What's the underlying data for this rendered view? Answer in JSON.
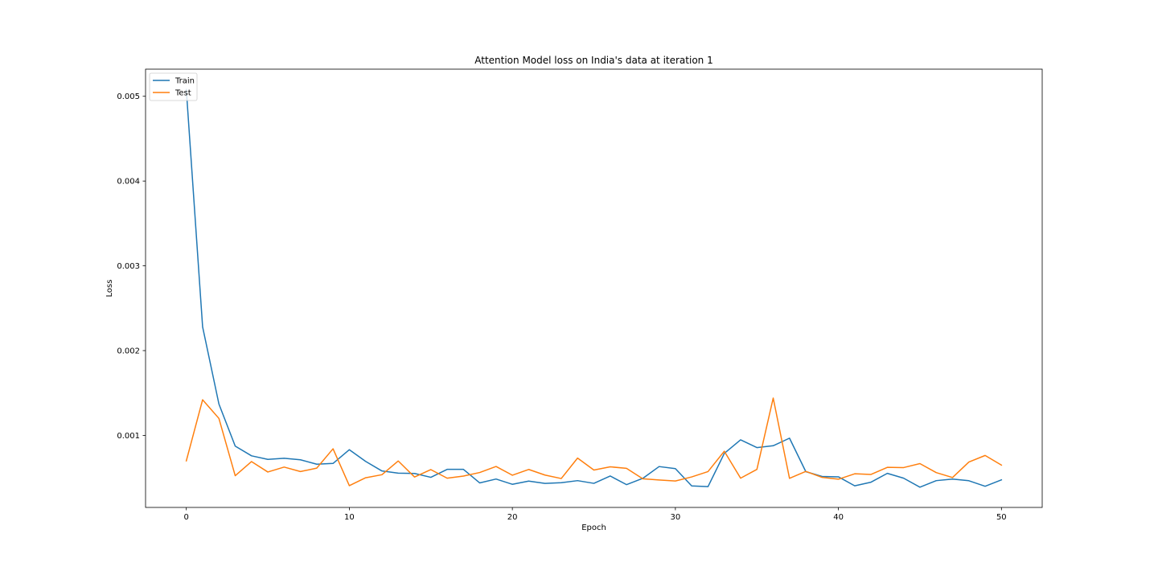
{
  "chart_data": {
    "type": "line",
    "title": "Attention Model loss on India's data at iteration 1",
    "xlabel": "Epoch",
    "ylabel": "Loss",
    "xlim": [
      -2.5,
      52.5
    ],
    "ylim": [
      0.00015,
      0.00532
    ],
    "xticks": [
      0,
      10,
      20,
      30,
      40,
      50
    ],
    "yticks": [
      0.001,
      0.002,
      0.003,
      0.004,
      0.005
    ],
    "ytick_labels": [
      "0.001",
      "0.002",
      "0.003",
      "0.004",
      "0.005"
    ],
    "grid": false,
    "legend_position": "top-left",
    "x": [
      0,
      1,
      2,
      3,
      4,
      5,
      6,
      7,
      8,
      9,
      10,
      11,
      12,
      13,
      14,
      15,
      16,
      17,
      18,
      19,
      20,
      21,
      22,
      23,
      24,
      25,
      26,
      27,
      28,
      29,
      30,
      31,
      32,
      33,
      34,
      35,
      36,
      37,
      38,
      39,
      40,
      41,
      42,
      43,
      44,
      45,
      46,
      47,
      48,
      49,
      50
    ],
    "series": [
      {
        "name": "Train",
        "color": "#1f77b4",
        "values": [
          0.00508,
          0.00228,
          0.00137,
          0.000873,
          0.000759,
          0.000717,
          0.00073,
          0.000712,
          0.00066,
          0.000669,
          0.000831,
          0.000693,
          0.00058,
          0.000554,
          0.000551,
          0.000505,
          0.000599,
          0.000599,
          0.000439,
          0.000485,
          0.000423,
          0.000461,
          0.000433,
          0.000442,
          0.000466,
          0.000434,
          0.000521,
          0.000419,
          0.000493,
          0.000632,
          0.000608,
          0.000404,
          0.000395,
          0.000787,
          0.000947,
          0.000856,
          0.000878,
          0.000967,
          0.000572,
          0.000515,
          0.000511,
          0.000405,
          0.000448,
          0.000552,
          0.000495,
          0.000389,
          0.000466,
          0.000484,
          0.000465,
          0.0004,
          0.000475
        ]
      },
      {
        "name": "Test",
        "color": "#ff7f0e",
        "values": [
          0.000699,
          0.00142,
          0.0012,
          0.000524,
          0.000691,
          0.000568,
          0.000626,
          0.000573,
          0.000614,
          0.000842,
          0.000407,
          0.0005,
          0.000536,
          0.000698,
          0.000509,
          0.000596,
          0.000495,
          0.00052,
          0.000562,
          0.000633,
          0.00053,
          0.000598,
          0.000532,
          0.000491,
          0.000732,
          0.000591,
          0.000629,
          0.000611,
          0.000488,
          0.000474,
          0.000462,
          0.00051,
          0.000573,
          0.000813,
          0.000495,
          0.000599,
          0.00144,
          0.000493,
          0.000575,
          0.000504,
          0.000483,
          0.000547,
          0.000539,
          0.000623,
          0.00062,
          0.000667,
          0.000561,
          0.000503,
          0.000685,
          0.000763,
          0.000649
        ]
      }
    ]
  }
}
